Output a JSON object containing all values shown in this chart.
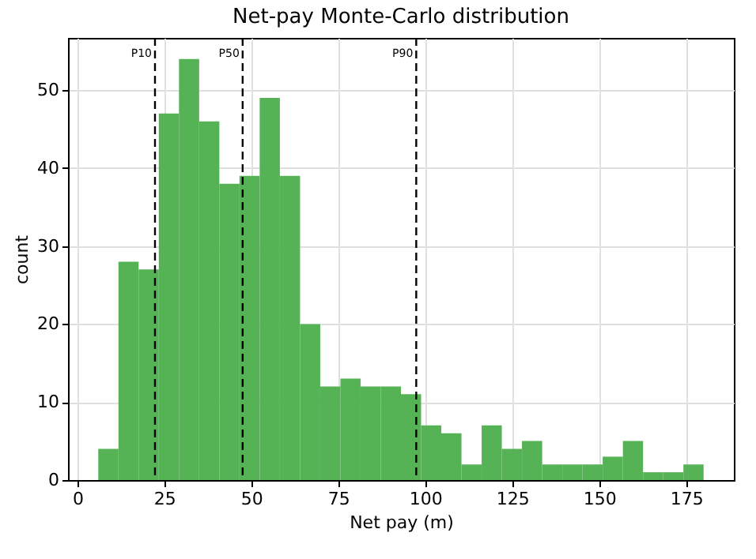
{
  "chart_data": {
    "type": "histogram",
    "title": "Net-pay Monte-Carlo distribution",
    "xlabel": "Net pay (m)",
    "ylabel": "count",
    "bins": [
      6.0,
      11.8,
      17.6,
      23.4,
      29.2,
      35.0,
      40.8,
      46.6,
      52.4,
      58.2,
      64.0,
      69.8,
      75.6,
      81.4,
      87.2,
      93.0,
      98.8,
      104.6,
      110.4,
      116.2,
      122.0,
      127.8,
      133.6,
      139.4,
      145.2,
      151.0,
      156.8,
      162.6,
      168.4,
      174.2,
      180.0
    ],
    "values": [
      4,
      28,
      27,
      47,
      54,
      46,
      38,
      39,
      49,
      39,
      20,
      12,
      13,
      12,
      12,
      11,
      7,
      6,
      2,
      7,
      4,
      5,
      2,
      2,
      2,
      3,
      5,
      1,
      1,
      2
    ],
    "color": "#55b355",
    "xlim": [
      -2.7,
      188.7
    ],
    "ylim": [
      0,
      56.7
    ],
    "xticks": [
      0,
      25,
      50,
      75,
      100,
      125,
      150,
      175
    ],
    "yticks": [
      0,
      10,
      20,
      30,
      40,
      50
    ],
    "grid": true,
    "ref_lines": [
      {
        "axis": "x",
        "value": 22.3,
        "label": "P10",
        "color": "#000000",
        "line_style": "dashed"
      },
      {
        "axis": "x",
        "value": 47.5,
        "label": "P50",
        "color": "#000000",
        "line_style": "dashed"
      },
      {
        "axis": "x",
        "value": 97.4,
        "label": "P90",
        "color": "#000000",
        "line_style": "dashed"
      }
    ]
  }
}
